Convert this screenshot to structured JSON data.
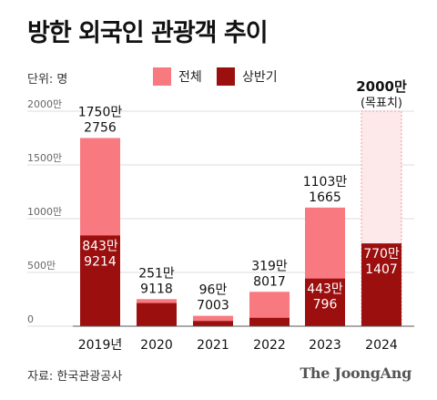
{
  "title": "방한 외국인 관광객 추이",
  "unit_label": "단위: 명",
  "source": "자료: 한국관광공사",
  "brand": "The JoongAng",
  "colors": {
    "total": "#f87a80",
    "half": "#9c0f0f",
    "target_fill": "#fde8ea",
    "target_border": "#f49aa0"
  },
  "chart_data": {
    "type": "bar",
    "title": "방한 외국인 관광객 추이",
    "unit": "명",
    "categories": [
      "2019년",
      "2020",
      "2021",
      "2022",
      "2023",
      "2024"
    ],
    "series": [
      {
        "name": "전체",
        "values": [
          17502756,
          2519118,
          967003,
          3198017,
          11031665,
          null
        ]
      },
      {
        "name": "상반기",
        "values": [
          8439214,
          2150000,
          480000,
          780000,
          4430796,
          7701407
        ]
      }
    ],
    "target": {
      "category": "2024",
      "value": 20000000,
      "label_line1": "2000만",
      "label_line2": "(목표치)"
    },
    "total_labels": [
      [
        "1750만",
        "2756"
      ],
      [
        "251만",
        "9118"
      ],
      [
        "96만",
        "7003"
      ],
      [
        "319만",
        "8017"
      ],
      [
        "1103만",
        "1665"
      ],
      null
    ],
    "half_labels": [
      [
        "843만",
        "9214"
      ],
      null,
      null,
      null,
      [
        "443만",
        "796"
      ],
      [
        "770만",
        "1407"
      ]
    ],
    "y_ticks": [
      "0",
      "500만",
      "1000만",
      "1500만",
      "2000만"
    ],
    "y_tick_values": [
      0,
      5000000,
      10000000,
      15000000,
      20000000
    ],
    "ylim": [
      0,
      20000000
    ],
    "grid": true,
    "legend_position": "top"
  }
}
